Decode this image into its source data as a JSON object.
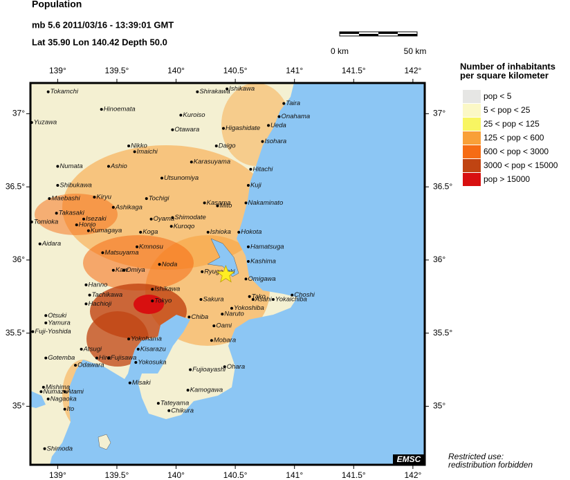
{
  "header": {
    "title": "Population",
    "event": "mb 5.6  2011/03/16 - 13:39:01 GMT",
    "location": "Lat 35.90    Lon 140.42    Depth  50.0"
  },
  "map": {
    "xlim": [
      138.77,
      142.1
    ],
    "ylim": [
      34.6,
      37.21
    ],
    "xticks": [
      {
        "value": 139,
        "label": "139°"
      },
      {
        "value": 139.5,
        "label": "139.5°"
      },
      {
        "value": 140,
        "label": "140°"
      },
      {
        "value": 140.5,
        "label": "140.5°"
      },
      {
        "value": 141,
        "label": "141°"
      },
      {
        "value": 141.5,
        "label": "141.5°"
      },
      {
        "value": 142,
        "label": "142°"
      }
    ],
    "yticks": [
      {
        "value": 35,
        "label": "35°"
      },
      {
        "value": 35.5,
        "label": "35.5°"
      },
      {
        "value": 36,
        "label": "36°"
      },
      {
        "value": 36.5,
        "label": "36.5°"
      },
      {
        "value": 37,
        "label": "37°"
      }
    ],
    "epicenter": {
      "lon": 140.42,
      "lat": 35.9
    },
    "cities": [
      {
        "name": "Tokamchi",
        "lon": 138.92,
        "lat": 37.15
      },
      {
        "name": "Hinoemata",
        "lon": 139.37,
        "lat": 37.03
      },
      {
        "name": "Shirakawa",
        "lon": 140.18,
        "lat": 37.15
      },
      {
        "name": "Ishikawa",
        "lon": 140.43,
        "lat": 37.17
      },
      {
        "name": "Taira",
        "lon": 140.91,
        "lat": 37.07
      },
      {
        "name": "Onahama",
        "lon": 140.87,
        "lat": 36.98
      },
      {
        "name": "Yuzawa",
        "lon": 138.78,
        "lat": 36.94
      },
      {
        "name": "Kuroiso",
        "lon": 140.04,
        "lat": 36.99
      },
      {
        "name": "Otawara",
        "lon": 139.97,
        "lat": 36.89
      },
      {
        "name": "Higashidate",
        "lon": 140.4,
        "lat": 36.9
      },
      {
        "name": "Ueda",
        "lon": 140.78,
        "lat": 36.92
      },
      {
        "name": "Isohara",
        "lon": 140.73,
        "lat": 36.81
      },
      {
        "name": "Daigo",
        "lon": 140.34,
        "lat": 36.78
      },
      {
        "name": "Nikko",
        "lon": 139.6,
        "lat": 36.78
      },
      {
        "name": "Imaichi",
        "lon": 139.65,
        "lat": 36.74
      },
      {
        "name": "Karasuyama",
        "lon": 140.13,
        "lat": 36.67
      },
      {
        "name": "Numata",
        "lon": 139.0,
        "lat": 36.64
      },
      {
        "name": "Ashio",
        "lon": 139.43,
        "lat": 36.64
      },
      {
        "name": "Hitachi",
        "lon": 140.63,
        "lat": 36.62
      },
      {
        "name": "Utsunomiya",
        "lon": 139.88,
        "lat": 36.56
      },
      {
        "name": "Shibukawa",
        "lon": 139.0,
        "lat": 36.51
      },
      {
        "name": "Kuji",
        "lon": 140.61,
        "lat": 36.51
      },
      {
        "name": "Kiryu",
        "lon": 139.31,
        "lat": 36.43
      },
      {
        "name": "Maebashi",
        "lon": 138.93,
        "lat": 36.42
      },
      {
        "name": "Ashikaga",
        "lon": 139.47,
        "lat": 36.36
      },
      {
        "name": "Tochigi",
        "lon": 139.75,
        "lat": 36.42
      },
      {
        "name": "Kasama",
        "lon": 140.24,
        "lat": 36.39
      },
      {
        "name": "Mito",
        "lon": 140.35,
        "lat": 36.37
      },
      {
        "name": "Nakaminato",
        "lon": 140.59,
        "lat": 36.39
      },
      {
        "name": "Takasaki",
        "lon": 138.99,
        "lat": 36.32
      },
      {
        "name": "Isezaki",
        "lon": 139.22,
        "lat": 36.28
      },
      {
        "name": "Oyama",
        "lon": 139.79,
        "lat": 36.28
      },
      {
        "name": "Shimodate",
        "lon": 139.97,
        "lat": 36.29
      },
      {
        "name": "Kuroqo",
        "lon": 139.96,
        "lat": 36.23
      },
      {
        "name": "Tomioka",
        "lon": 138.78,
        "lat": 36.26
      },
      {
        "name": "Honjo",
        "lon": 139.16,
        "lat": 36.24
      },
      {
        "name": "Kumagaya",
        "lon": 139.26,
        "lat": 36.2
      },
      {
        "name": "Koga",
        "lon": 139.7,
        "lat": 36.19
      },
      {
        "name": "Ishioka",
        "lon": 140.27,
        "lat": 36.19
      },
      {
        "name": "Hokota",
        "lon": 140.53,
        "lat": 36.19
      },
      {
        "name": "Aidara",
        "lon": 138.85,
        "lat": 36.11
      },
      {
        "name": "Matsuyama",
        "lon": 139.38,
        "lat": 36.05
      },
      {
        "name": "Kmnosu",
        "lon": 139.67,
        "lat": 36.09
      },
      {
        "name": "Hamatsuga",
        "lon": 140.61,
        "lat": 36.09
      },
      {
        "name": "Kashima",
        "lon": 140.61,
        "lat": 35.99
      },
      {
        "name": "Kaw",
        "lon": 139.47,
        "lat": 35.93
      },
      {
        "name": "Omiya",
        "lon": 139.56,
        "lat": 35.93
      },
      {
        "name": "Noda",
        "lon": 139.86,
        "lat": 35.97
      },
      {
        "name": "Ryugasaki",
        "lon": 140.22,
        "lat": 35.92
      },
      {
        "name": "Omigawa",
        "lon": 140.59,
        "lat": 35.87
      },
      {
        "name": "Hanno",
        "lon": 139.24,
        "lat": 35.83
      },
      {
        "name": "Ishikawa",
        "lon": 139.8,
        "lat": 35.8
      },
      {
        "name": "Tachikawa",
        "lon": 139.27,
        "lat": 35.76
      },
      {
        "name": "Hachioji",
        "lon": 139.24,
        "lat": 35.7
      },
      {
        "name": "Tokyo",
        "lon": 139.8,
        "lat": 35.72
      },
      {
        "name": "Sakura",
        "lon": 140.21,
        "lat": 35.73
      },
      {
        "name": "Tako",
        "lon": 140.62,
        "lat": 35.75
      },
      {
        "name": "Choshi",
        "lon": 140.98,
        "lat": 35.76
      },
      {
        "name": "Asahi",
        "lon": 140.65,
        "lat": 35.73
      },
      {
        "name": "Yokaichiba",
        "lon": 140.82,
        "lat": 35.73
      },
      {
        "name": "Yokoshiba",
        "lon": 140.47,
        "lat": 35.67
      },
      {
        "name": "Chiba",
        "lon": 140.11,
        "lat": 35.61
      },
      {
        "name": "Naruto",
        "lon": 140.39,
        "lat": 35.63
      },
      {
        "name": "Otsuki",
        "lon": 138.9,
        "lat": 35.62
      },
      {
        "name": "Yamura",
        "lon": 138.9,
        "lat": 35.57
      },
      {
        "name": "Fuji-Yoshida",
        "lon": 138.79,
        "lat": 35.51
      },
      {
        "name": "Oami",
        "lon": 140.32,
        "lat": 35.55
      },
      {
        "name": "Mobara",
        "lon": 140.3,
        "lat": 35.45
      },
      {
        "name": "Yokohama",
        "lon": 139.6,
        "lat": 35.46
      },
      {
        "name": "Atsugi",
        "lon": 139.2,
        "lat": 35.39
      },
      {
        "name": "Hira",
        "lon": 139.33,
        "lat": 35.33
      },
      {
        "name": "Fujisawa",
        "lon": 139.43,
        "lat": 35.33
      },
      {
        "name": "Kisarazu",
        "lon": 139.68,
        "lat": 35.39
      },
      {
        "name": "Gotemba",
        "lon": 138.9,
        "lat": 35.33
      },
      {
        "name": "Odawara",
        "lon": 139.15,
        "lat": 35.28
      },
      {
        "name": "Yokosuka",
        "lon": 139.66,
        "lat": 35.3
      },
      {
        "name": "Ohara",
        "lon": 140.41,
        "lat": 35.27
      },
      {
        "name": "Fujioayashi",
        "lon": 140.12,
        "lat": 35.25
      },
      {
        "name": "Mishima",
        "lon": 138.88,
        "lat": 35.13
      },
      {
        "name": "Numazu",
        "lon": 138.86,
        "lat": 35.1
      },
      {
        "name": "Atami",
        "lon": 139.06,
        "lat": 35.1
      },
      {
        "name": "Misaki",
        "lon": 139.61,
        "lat": 35.16
      },
      {
        "name": "Kamogawa",
        "lon": 140.1,
        "lat": 35.11
      },
      {
        "name": "Nagaoka",
        "lon": 138.92,
        "lat": 35.05
      },
      {
        "name": "Ito",
        "lon": 139.06,
        "lat": 34.98
      },
      {
        "name": "Tateyama",
        "lon": 139.85,
        "lat": 35.02
      },
      {
        "name": "Chikura",
        "lon": 139.94,
        "lat": 34.97
      },
      {
        "name": "Shimoda",
        "lon": 138.89,
        "lat": 34.71
      }
    ]
  },
  "scale": {
    "left": "0 km",
    "right": "50 km"
  },
  "legend": {
    "title": [
      "Number of inhabitants",
      "per square kilometer"
    ],
    "items": [
      {
        "label": "pop < 5",
        "color": "#e6e6e4"
      },
      {
        "label": "5 < pop < 25",
        "color": "#fbf8c6"
      },
      {
        "label": "25 < pop < 125",
        "color": "#f8f562"
      },
      {
        "label": "125 < pop < 600",
        "color": "#f9a038"
      },
      {
        "label": "600 < pop < 3000",
        "color": "#f66c14"
      },
      {
        "label": "3000 < pop < 15000",
        "color": "#c04412"
      },
      {
        "label": "pop > 15000",
        "color": "#d81010"
      }
    ]
  },
  "footer": {
    "brand": "EMSC",
    "notice": [
      "Restricted use:",
      "redistribution forbidden"
    ]
  }
}
